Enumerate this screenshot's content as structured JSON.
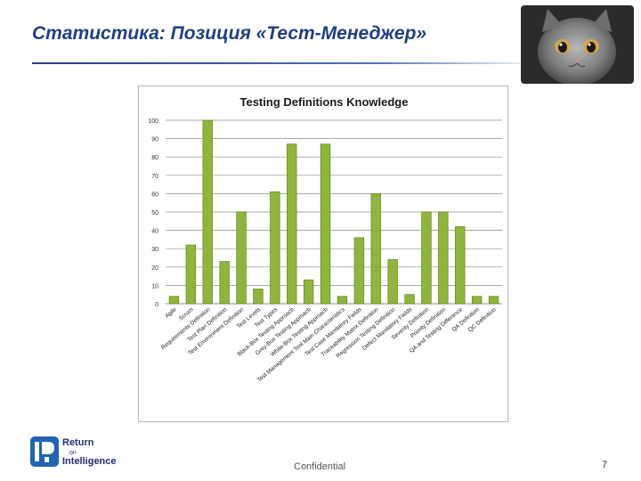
{
  "slide": {
    "title": "Статистика: Позиция «Тест-Менеджер»",
    "footer_text": "Confidential",
    "page_number": "7"
  },
  "logo": {
    "line1": "Return",
    "line2": "on",
    "line3": "Intelligence"
  },
  "icons": {
    "photo": "sad-kitten-photo",
    "logo": "return-on-intelligence-logo-icon"
  },
  "colors": {
    "title": "#1f3f86",
    "bar_fill": "#8fb63a",
    "bar_edge": "#6a8c25",
    "grid": "#8c8c8c"
  },
  "chart_data": {
    "type": "bar",
    "title": "Testing Definitions Knowledge",
    "xlabel": "",
    "ylabel": "",
    "ylim": [
      0,
      100
    ],
    "yticks": [
      0,
      10,
      20,
      30,
      40,
      50,
      60,
      70,
      80,
      90,
      100
    ],
    "grid": true,
    "legend": "none",
    "categories": [
      "Agile",
      "Scrum",
      "Requirements Definition",
      "Test Plan Definition",
      "Test Environment Definition",
      "Test Levels",
      "Test Types",
      "Black-Box Testing Approach",
      "Grey-Box Testing Approach",
      "White-Box Testing Approach",
      "Test Management Tool Main Characteristics",
      "Test Case Mandatory Fields",
      "Traceability Matrix Definition",
      "Regression Testing Definition",
      "Defect Mandatory Fields",
      "Severity Definition",
      "Priority Definition",
      "QA and Testing Difference",
      "QA Definition",
      "QC Definition"
    ],
    "values": [
      4,
      32,
      100,
      23,
      50,
      8,
      61,
      87,
      13,
      87,
      4,
      36,
      60,
      24,
      5,
      50,
      50,
      42,
      4,
      4
    ]
  }
}
